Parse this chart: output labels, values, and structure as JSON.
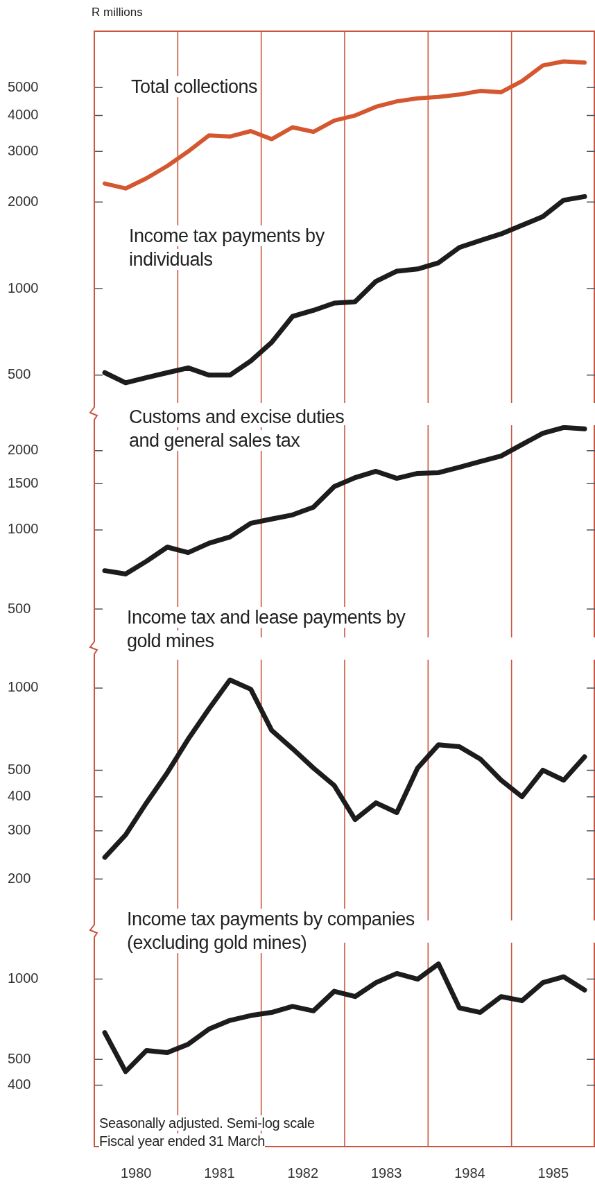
{
  "chart_data": [
    {
      "type": "line",
      "ylabel": "R millions",
      "log": true,
      "xlim": [
        1979.5,
        1985.5
      ],
      "xticks": [
        1980,
        1981,
        1982,
        1983,
        1984,
        1985
      ],
      "tick_labels": "y",
      "ylim": [
        400,
        7900
      ],
      "yticks": [
        500,
        1000,
        2000,
        3000,
        4000,
        5000
      ],
      "grid": false,
      "x": [
        1979.625,
        1979.875,
        1980.125,
        1980.375,
        1980.625,
        1980.875,
        1981.125,
        1981.375,
        1981.625,
        1981.875,
        1982.125,
        1982.375,
        1982.625,
        1982.875,
        1983.125,
        1983.375,
        1983.625,
        1983.875,
        1984.125,
        1984.375,
        1984.625,
        1984.875,
        1985.125,
        1985.375
      ],
      "ref_lines": [
        {
          "axis": "x",
          "value": 1980.5,
          "color": "#c8553d"
        },
        {
          "axis": "x",
          "value": 1981.5,
          "color": "#c8553d"
        },
        {
          "axis": "x",
          "value": 1982.5,
          "color": "#c8553d"
        },
        {
          "axis": "x",
          "value": 1983.5,
          "color": "#c8553d"
        },
        {
          "axis": "x",
          "value": 1984.5,
          "color": "#c8553d"
        }
      ],
      "series": [
        {
          "name": "Total collections",
          "color": "#d4572f",
          "values": [
            2320,
            2230,
            2420,
            2670,
            3000,
            3410,
            3380,
            3530,
            3310,
            3640,
            3510,
            3840,
            4000,
            4290,
            4480,
            4590,
            4640,
            4730,
            4870,
            4820,
            5270,
            5970,
            6170,
            6110
          ]
        },
        {
          "name": "Income tax payments by individuals",
          "color": "#1c1c1c",
          "values": [
            510,
            470,
            490,
            510,
            530,
            500,
            500,
            560,
            650,
            800,
            840,
            890,
            900,
            1060,
            1150,
            1170,
            1230,
            1390,
            1470,
            1550,
            1660,
            1780,
            2030,
            2090
          ]
        }
      ]
    },
    {
      "type": "line",
      "log": true,
      "xlim": [
        1979.5,
        1985.5
      ],
      "xticks": [
        1980,
        1981,
        1982,
        1983,
        1984,
        1985
      ],
      "tick_labels": "y",
      "ylim": [
        390,
        2500
      ],
      "yticks": [
        500,
        1000,
        1500,
        2000
      ],
      "grid": false,
      "x": [
        1979.625,
        1979.875,
        1980.125,
        1980.375,
        1980.625,
        1980.875,
        1981.125,
        1981.375,
        1981.625,
        1981.875,
        1982.125,
        1982.375,
        1982.625,
        1982.875,
        1983.125,
        1983.375,
        1983.625,
        1983.875,
        1984.125,
        1984.375,
        1984.625,
        1984.875,
        1985.125,
        1985.375
      ],
      "ref_lines": [
        {
          "axis": "x",
          "value": 1980.5,
          "color": "#c8553d"
        },
        {
          "axis": "x",
          "value": 1981.5,
          "color": "#c8553d"
        },
        {
          "axis": "x",
          "value": 1982.5,
          "color": "#c8553d"
        },
        {
          "axis": "x",
          "value": 1983.5,
          "color": "#c8553d"
        },
        {
          "axis": "x",
          "value": 1984.5,
          "color": "#c8553d"
        }
      ],
      "series": [
        {
          "name": "Customs and excise duties and general sales tax",
          "color": "#1c1c1c",
          "values": [
            700,
            680,
            760,
            860,
            820,
            890,
            940,
            1060,
            1100,
            1140,
            1220,
            1460,
            1580,
            1670,
            1570,
            1640,
            1650,
            1730,
            1820,
            1910,
            2110,
            2330,
            2450,
            2420
          ]
        }
      ]
    },
    {
      "type": "line",
      "log": true,
      "xlim": [
        1979.5,
        1985.5
      ],
      "xticks": [
        1980,
        1981,
        1982,
        1983,
        1984,
        1985
      ],
      "tick_labels": "y",
      "ylim": [
        141,
        1270
      ],
      "yticks": [
        200,
        300,
        400,
        500,
        1000
      ],
      "grid": false,
      "x": [
        1979.625,
        1979.875,
        1980.125,
        1980.375,
        1980.625,
        1980.875,
        1981.125,
        1981.375,
        1981.625,
        1981.875,
        1982.125,
        1982.375,
        1982.625,
        1982.875,
        1983.125,
        1983.375,
        1983.625,
        1983.875,
        1984.125,
        1984.375,
        1984.625,
        1984.875,
        1985.125,
        1985.375
      ],
      "ref_lines": [
        {
          "axis": "x",
          "value": 1980.5,
          "color": "#c8553d"
        },
        {
          "axis": "x",
          "value": 1981.5,
          "color": "#c8553d"
        },
        {
          "axis": "x",
          "value": 1982.5,
          "color": "#c8553d"
        },
        {
          "axis": "x",
          "value": 1983.5,
          "color": "#c8553d"
        },
        {
          "axis": "x",
          "value": 1984.5,
          "color": "#c8553d"
        }
      ],
      "series": [
        {
          "name": "Income tax and lease payments by gold mines",
          "color": "#1c1c1c",
          "values": [
            240,
            290,
            380,
            490,
            650,
            840,
            1070,
            990,
            700,
            600,
            510,
            440,
            330,
            380,
            350,
            510,
            620,
            610,
            550,
            460,
            400,
            500,
            460,
            560
          ]
        }
      ]
    },
    {
      "type": "line",
      "log": true,
      "xlim": [
        1979.5,
        1985.5
      ],
      "xticks": [
        1980,
        1981,
        1982,
        1983,
        1984,
        1985
      ],
      "ylim": [
        234,
        1370
      ],
      "yticks": [
        400,
        500,
        1000
      ],
      "grid": false,
      "x": [
        1979.625,
        1979.875,
        1980.125,
        1980.375,
        1980.625,
        1980.875,
        1981.125,
        1981.375,
        1981.625,
        1981.875,
        1982.125,
        1982.375,
        1982.625,
        1982.875,
        1983.125,
        1983.375,
        1983.625,
        1983.875,
        1984.125,
        1984.375,
        1984.625,
        1984.875,
        1985.125,
        1985.375
      ],
      "ref_lines": [
        {
          "axis": "x",
          "value": 1980.5,
          "color": "#c8553d"
        },
        {
          "axis": "x",
          "value": 1981.5,
          "color": "#c8553d"
        },
        {
          "axis": "x",
          "value": 1982.5,
          "color": "#c8553d"
        },
        {
          "axis": "x",
          "value": 1983.5,
          "color": "#c8553d"
        },
        {
          "axis": "x",
          "value": 1984.5,
          "color": "#c8553d"
        }
      ],
      "annotations": [
        "Seasonally adjusted. Semi-log scale",
        "Fiscal year ended 31 March"
      ],
      "series": [
        {
          "name": "Income tax payments by companies (excluding gold mines)",
          "color": "#1c1c1c",
          "values": [
            630,
            450,
            540,
            530,
            570,
            650,
            700,
            730,
            750,
            790,
            760,
            900,
            860,
            970,
            1050,
            1000,
            1140,
            780,
            750,
            860,
            830,
            970,
            1020,
            910
          ]
        }
      ]
    }
  ]
}
